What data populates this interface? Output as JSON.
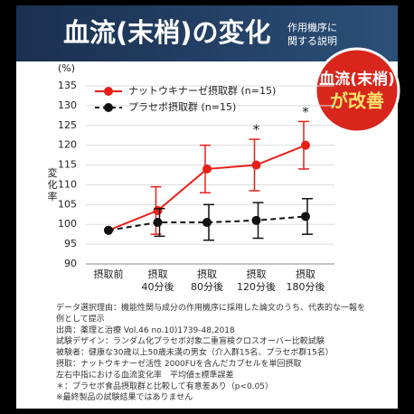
{
  "header": {
    "title": "血流(末梢)の変化",
    "subtitle": [
      "作用機序に",
      "関する説明"
    ]
  },
  "badge": [
    "血流(末梢)",
    "が改善"
  ],
  "chart_data": {
    "type": "line",
    "y_unit": "(%)",
    "ylabel": "変化率",
    "categories": [
      "摂取前",
      "摂取\n40分後",
      "摂取\n80分後",
      "摂取\n120分後",
      "摂取\n180分後"
    ],
    "series": [
      {
        "name": "ナットウキナーゼ摂取群 (n=15)",
        "color": "#e8201a",
        "dash": false,
        "values": [
          98.5,
          103.5,
          114,
          115,
          120
        ],
        "errors": [
          null,
          6,
          6,
          6.5,
          6
        ]
      },
      {
        "name": "プラセボ摂取群 (n=15)",
        "color": "#111111",
        "dash": true,
        "values": [
          98.5,
          100.5,
          100.5,
          101,
          102
        ],
        "errors": [
          null,
          3.5,
          4.5,
          4.5,
          4.5
        ]
      }
    ],
    "annotations": [
      {
        "text": "*",
        "category": 3
      },
      {
        "text": "*",
        "category": 4
      }
    ],
    "ylim": [
      90,
      135
    ],
    "yticks": [
      90,
      95,
      100,
      105,
      110,
      115,
      120,
      125,
      130,
      135
    ],
    "grid": true
  },
  "notes": [
    "データ選択理由：機能性関与成分の作用機序に採用した論文のうち、代表的な一報を",
    "例として提示",
    "出典：薬理と治療 Vol.46 no.10)1739-48,2018",
    "試験デザイン：ランダム化プラセボ対象二重盲検クロスオーバー比較試験",
    "被験者：健康な30歳以上50歳未満の男女（介入群15名、プラセボ群15名）",
    "摂取：ナットウキナーゼ活性 2000FUを含んだカプセルを単回摂取",
    "左右中指における血流変化率　平均値±標準誤差",
    "＊：プラセボ食品摂取群と比較して有意差あり（p<0.05）",
    "※最終製品の試験結果ではありません"
  ]
}
